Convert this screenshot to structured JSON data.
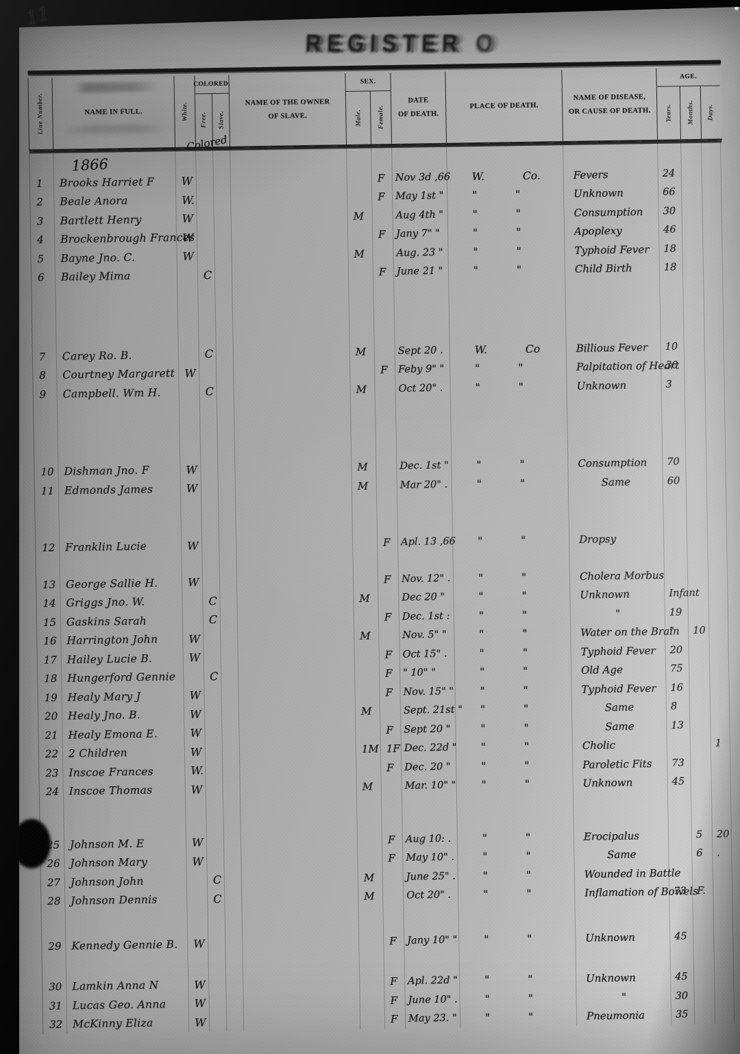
{
  "page": {
    "handwritten_page_number": "11",
    "stamp_title": "REGISTER",
    "stamp_extra": "O",
    "year_heading": "1866"
  },
  "header": {
    "line_number": "Line Number.",
    "name_in_full": "NAME IN FULL.",
    "white": "White.",
    "colored": "COLORED.",
    "free": "Free.",
    "slave": "Slave.",
    "colored_scrawl": "Colored",
    "owner_line1": "NAME OF THE OWNER",
    "owner_line2": "OF SLAVE.",
    "sex": "SEX.",
    "male": "Male.",
    "female": "Female.",
    "date_line1": "DATE",
    "date_line2": "OF DEATH.",
    "place_of_death": "PLACE OF DEATH.",
    "disease_line1": "NAME OF DISEASE,",
    "disease_line2": "OR CAUSE OF DEATH.",
    "age": "AGE.",
    "years": "Years.",
    "months": "Months.",
    "days": "Days."
  },
  "rows": [
    {
      "no": "1",
      "name": "Brooks Harriet F",
      "white": "W",
      "colored": "",
      "owner": "",
      "male": "",
      "female": "F",
      "date": "Nov 3d ,66",
      "place1": "W.",
      "place2": "Co.",
      "disease": "Fevers",
      "years": "24",
      "months": "",
      "days": ""
    },
    {
      "no": "2",
      "name": "Beale Anora",
      "white": "W.",
      "colored": "",
      "owner": "",
      "male": "",
      "female": "F",
      "date": "May 1st  \"",
      "place1": "\"",
      "place2": "\"",
      "disease": "Unknown",
      "years": "66",
      "months": "",
      "days": ""
    },
    {
      "no": "3",
      "name": "Bartlett Henry",
      "white": "W",
      "colored": "",
      "owner": "",
      "male": "M",
      "female": "",
      "date": "Aug 4th  \"",
      "place1": "\"",
      "place2": "\"",
      "disease": "Consumption",
      "years": "30",
      "months": "",
      "days": ""
    },
    {
      "no": "4",
      "name": "Brockenbrough Frances",
      "white": "W",
      "colored": "",
      "owner": "",
      "male": "",
      "female": "F",
      "date": "Jany 7\"  \"",
      "place1": "\"",
      "place2": "\"",
      "disease": "Apoplexy",
      "years": "46",
      "months": "",
      "days": ""
    },
    {
      "no": "5",
      "name": "Bayne Jno. C.",
      "white": "W",
      "colored": "",
      "owner": "",
      "male": "M",
      "female": "",
      "date": "Aug. 23  \"",
      "place1": "\"",
      "place2": "\"",
      "disease": "Typhoid Fever",
      "years": "18",
      "months": "",
      "days": ""
    },
    {
      "no": "6",
      "name": "Bailey Mima",
      "white": "",
      "colored": "C",
      "owner": "",
      "male": "",
      "female": "F",
      "date": "June 21  \"",
      "place1": "\"",
      "place2": "\"",
      "disease": "Child Birth",
      "years": "18",
      "months": "",
      "days": ""
    },
    {
      "no": "7",
      "gap": 88,
      "name": "Carey Ro. B.",
      "white": "",
      "colored": "C",
      "owner": "",
      "male": "M",
      "female": "",
      "date": "Sept 20  .",
      "place1": "W.",
      "place2": "Co",
      "disease": "Billious Fever",
      "years": "10",
      "months": "",
      "days": ""
    },
    {
      "no": "8",
      "name": "Courtney Margarett",
      "white": "W",
      "colored": "",
      "owner": "",
      "male": "",
      "female": "F",
      "date": "Feby 9\"  \"",
      "place1": "\"",
      "place2": "\"",
      "disease": "Palpitation of Heart",
      "years": "30",
      "months": "",
      "days": ""
    },
    {
      "no": "9",
      "name": "Campbell. Wm H.",
      "white": "",
      "colored": "C",
      "owner": "",
      "male": "M",
      "female": "",
      "date": "Oct 20\"  .",
      "place1": "\"",
      "place2": "\"",
      "disease": "Unknown",
      "years": "3",
      "months": "",
      "days": ""
    },
    {
      "no": "10",
      "gap": 86,
      "name": "Dishman Jno. F",
      "white": "W",
      "colored": "",
      "owner": "",
      "male": "M",
      "female": "",
      "date": "Dec. 1st  \"",
      "place1": "\"",
      "place2": "\"",
      "disease": "Consumption",
      "years": "70",
      "months": "",
      "days": ""
    },
    {
      "no": "11",
      "name": "Edmonds James",
      "white": "W",
      "colored": "",
      "owner": "",
      "male": "M",
      "female": "",
      "date": "Mar 20\"  .",
      "place1": "\"",
      "place2": "\"",
      "disease": "Same",
      "years": "60",
      "months": "",
      "days": ""
    },
    {
      "no": "12",
      "gap": 56,
      "name": "Franklin Lucie",
      "white": "W",
      "colored": "",
      "owner": "",
      "male": "",
      "female": "F",
      "date": "Apl. 13 ,66",
      "place1": "\"",
      "place2": "\"",
      "disease": "Dropsy",
      "years": "",
      "months": "",
      "days": ""
    },
    {
      "no": "13",
      "gap": 26,
      "name": "George Sallie H.",
      "white": "W",
      "colored": "",
      "owner": "",
      "male": "",
      "female": "F",
      "date": "Nov. 12\"  .",
      "place1": "\"",
      "place2": "\"",
      "disease": "Cholera Morbus",
      "years": "",
      "months": "",
      "days": ""
    },
    {
      "no": "14",
      "name": "Griggs Jno. W.",
      "white": "",
      "colored": "C",
      "owner": "",
      "male": "M",
      "female": "",
      "date": "Dec 20  \"",
      "place1": "\"",
      "place2": "\"",
      "disease": "Unknown",
      "years": "Infant",
      "months": "",
      "days": ""
    },
    {
      "no": "15",
      "name": "Gaskins Sarah",
      "white": "",
      "colored": "C",
      "owner": "",
      "male": "",
      "female": "F",
      "date": "Dec. 1st  :",
      "place1": "\"",
      "place2": "\"",
      "disease": "\"",
      "years": "19",
      "months": "",
      "days": ""
    },
    {
      "no": "16",
      "name": "Harrington John",
      "white": "W",
      "colored": "",
      "owner": "",
      "male": "M",
      "female": "",
      "date": "Nov. 5\"  \"",
      "place1": "\"",
      "place2": "\"",
      "disease": "Water on the Brain",
      "years": "\"",
      "months": "10",
      "days": ""
    },
    {
      "no": "17",
      "name": "Hailey Lucie B.",
      "white": "W",
      "colored": "",
      "owner": "",
      "male": "",
      "female": "F",
      "date": "Oct 15\"  .",
      "place1": "\"",
      "place2": "\"",
      "disease": "Typhoid Fever",
      "years": "20",
      "months": "",
      "days": ""
    },
    {
      "no": "18",
      "name": "Hungerford Gennie",
      "white": "",
      "colored": "C",
      "owner": "",
      "male": "",
      "female": "F",
      "date": "\" 10\"  \"",
      "place1": "\"",
      "place2": "\"",
      "disease": "Old Age",
      "years": "75",
      "months": "",
      "days": ""
    },
    {
      "no": "19",
      "name": "Healy Mary J",
      "white": "W",
      "colored": "",
      "owner": "",
      "male": "",
      "female": "F",
      "date": "Nov. 15\"  \"",
      "place1": "\"",
      "place2": "\"",
      "disease": "Typhoid Fever",
      "years": "16",
      "months": "",
      "days": ""
    },
    {
      "no": "20",
      "name": "Healy Jno. B.",
      "white": "W",
      "colored": "",
      "owner": "",
      "male": "M",
      "female": "",
      "date": "Sept. 21st  \"",
      "place1": "\"",
      "place2": "\"",
      "disease": "Same",
      "years": "8",
      "months": "",
      "days": ""
    },
    {
      "no": "21",
      "name": "Healy Emona E.",
      "white": "W",
      "colored": "",
      "owner": "",
      "male": "",
      "female": "F",
      "date": "Sept 20  \"",
      "place1": "\"",
      "place2": "\"",
      "disease": "Same",
      "years": "13",
      "months": "",
      "days": ""
    },
    {
      "no": "22",
      "name": "2 Children",
      "white": "W",
      "colored": "",
      "owner": "",
      "male": "1M",
      "female": "1F",
      "date": "Dec. 22d  \"",
      "place1": "\"",
      "place2": "\"",
      "disease": "Cholic",
      "years": "",
      "months": "",
      "days": "1"
    },
    {
      "no": "23",
      "name": "Inscoe Frances",
      "white": "W.",
      "colored": "",
      "owner": "",
      "male": "",
      "female": "F",
      "date": "Dec. 20  \"",
      "place1": "\"",
      "place2": "\"",
      "disease": "Paroletic Fits",
      "years": "73",
      "months": "",
      "days": ""
    },
    {
      "no": "24",
      "name": "Inscoe Thomas",
      "white": "W",
      "colored": "",
      "owner": "",
      "male": "M",
      "female": "",
      "date": "Mar. 10\"  \"",
      "place1": "\"",
      "place2": "\"",
      "disease": "Unknown",
      "years": "45",
      "months": "",
      "days": ""
    },
    {
      "no": "25",
      "gap": 50,
      "name": "Johnson M. E",
      "white": "W",
      "colored": "",
      "owner": "",
      "male": "",
      "female": "F",
      "date": "Aug 10:  .",
      "place1": "\"",
      "place2": "\"",
      "disease": "Erocipalus",
      "years": "",
      "months": "5",
      "days": "20"
    },
    {
      "no": "26",
      "name": "Johnson Mary",
      "white": "W",
      "colored": "",
      "owner": "",
      "male": "",
      "female": "F",
      "date": "May 10\"  .",
      "place1": "\"",
      "place2": "\"",
      "disease": "Same",
      "years": "",
      "months": "6",
      "days": "."
    },
    {
      "no": "27",
      "name": "Johnson John",
      "white": "",
      "colored": "C",
      "owner": "",
      "male": "M",
      "female": "",
      "date": "June 25\"  .",
      "place1": "\"",
      "place2": "\"",
      "disease": "Wounded in Battle",
      "years": "",
      "months": "",
      "days": ""
    },
    {
      "no": "28",
      "name": "Johnson Dennis",
      "white": "",
      "colored": "C",
      "owner": "",
      "male": "M",
      "female": "",
      "date": "Oct 20\"  .",
      "place1": "\"",
      "place2": "\"",
      "disease": "Inflamation of Bowels",
      "years": "73",
      "months": "F.",
      "days": ""
    },
    {
      "no": "29",
      "gap": 38,
      "name": "Kennedy Gennie B.",
      "white": "W",
      "colored": "",
      "owner": "",
      "male": "",
      "female": "F",
      "date": "Jany 10\"  \"",
      "place1": "\"",
      "place2": "\"",
      "disease": "Unknown",
      "years": "45",
      "months": "",
      "days": ""
    },
    {
      "no": "30",
      "gap": 32,
      "name": "Lamkin Anna N",
      "white": "W",
      "colored": "",
      "owner": "",
      "male": "",
      "female": "F",
      "date": "Apl. 22d  \"",
      "place1": "\"",
      "place2": "\"",
      "disease": "Unknown",
      "years": "45",
      "months": "",
      "days": ""
    },
    {
      "no": "31",
      "name": "Lucas Geo. Anna",
      "white": "W",
      "colored": "",
      "owner": "",
      "male": "",
      "female": "F",
      "date": "June 10\"  .",
      "place1": "\"",
      "place2": "\"",
      "disease": "\"",
      "years": "30",
      "months": "",
      "days": ""
    },
    {
      "no": "32",
      "name": "McKinny Eliza",
      "white": "W",
      "colored": "",
      "owner": "",
      "male": "",
      "female": "F",
      "date": "May 23.  \"",
      "place1": "\"",
      "place2": "\"",
      "disease": "Pneumonia",
      "years": "35",
      "months": "",
      "days": ""
    }
  ]
}
